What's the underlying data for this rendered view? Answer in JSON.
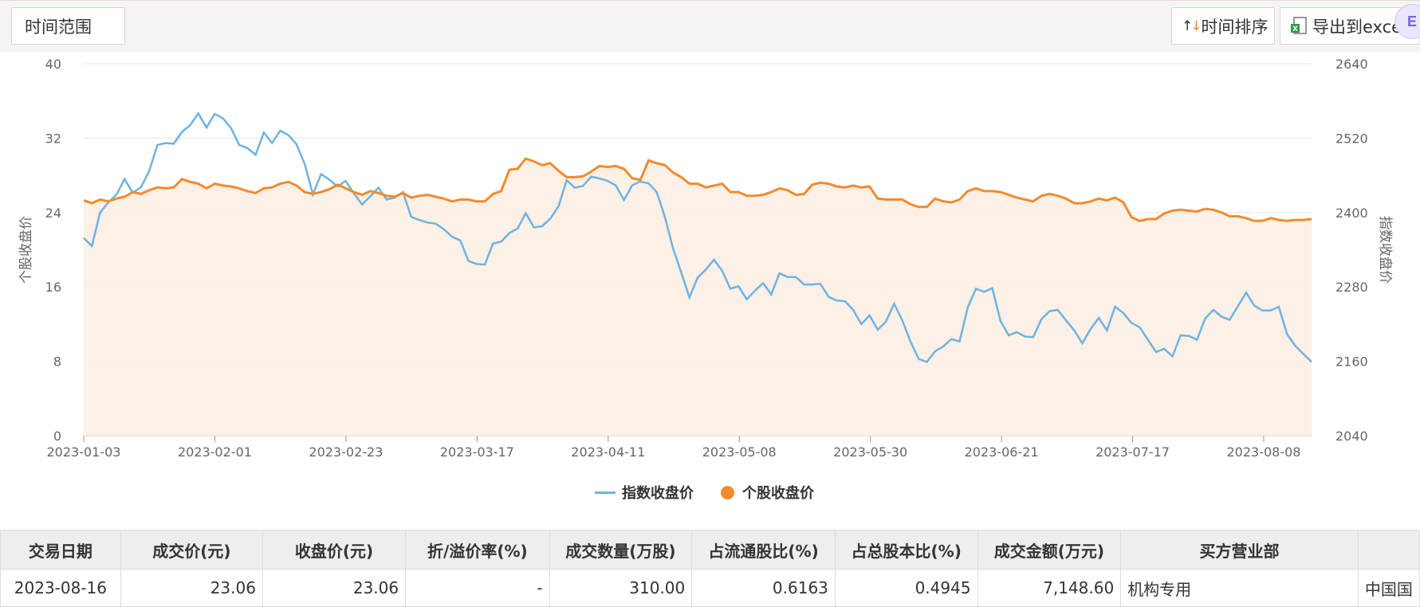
{
  "toolbar": {
    "time_range_label": "时间范围",
    "sort_label": "时间排序",
    "export_label": "导出到excel"
  },
  "colors": {
    "index_line": "#6fb3e0",
    "stock_line": "#f28b2d",
    "area_fill": "#fdeee4",
    "grid": "#e6e6e6"
  },
  "chart_data": {
    "type": "line",
    "ylabel_left": "个股收盘价",
    "ylabel_right": "指数收盘价",
    "y_left_ticks": [
      "0",
      "8",
      "16",
      "24",
      "32",
      "40"
    ],
    "y_right_ticks": [
      "2040",
      "2160",
      "2280",
      "2400",
      "2520",
      "2640"
    ],
    "ylim_left": [
      0,
      40
    ],
    "ylim_right": [
      2040,
      2640
    ],
    "x_ticks": [
      "2023-01-03",
      "2023-02-01",
      "2023-02-23",
      "2023-03-17",
      "2023-04-11",
      "2023-05-08",
      "2023-05-30",
      "2023-06-21",
      "2023-07-17",
      "2023-08-08"
    ],
    "legend_position": "bottom",
    "grid": true,
    "series": [
      {
        "name": "指数收盘价",
        "axis": "right",
        "values": [
          2359,
          2346,
          2400,
          2416,
          2429,
          2454,
          2432,
          2441,
          2467,
          2509,
          2512,
          2511,
          2530,
          2541,
          2560,
          2537,
          2559,
          2552,
          2536,
          2509,
          2504,
          2493,
          2529,
          2512,
          2532,
          2525,
          2510,
          2478,
          2429,
          2462,
          2453,
          2442,
          2451,
          2431,
          2413,
          2426,
          2440,
          2421,
          2424,
          2433,
          2393,
          2388,
          2384,
          2382,
          2373,
          2361,
          2355,
          2322,
          2317,
          2316,
          2350,
          2353,
          2367,
          2374,
          2399,
          2376,
          2378,
          2390,
          2410,
          2452,
          2440,
          2443,
          2458,
          2455,
          2451,
          2444,
          2420,
          2444,
          2450,
          2447,
          2433,
          2393,
          2342,
          2303,
          2263,
          2295,
          2308,
          2324,
          2306,
          2277,
          2281,
          2260,
          2274,
          2286,
          2268,
          2302,
          2296,
          2296,
          2284,
          2284,
          2285,
          2264,
          2258,
          2257,
          2243,
          2220,
          2234,
          2211,
          2224,
          2253,
          2226,
          2192,
          2164,
          2159,
          2176,
          2184,
          2196,
          2192,
          2247,
          2277,
          2272,
          2278,
          2225,
          2202,
          2207,
          2200,
          2199,
          2228,
          2241,
          2243,
          2226,
          2210,
          2189,
          2212,
          2230,
          2210,
          2248,
          2238,
          2222,
          2215,
          2195,
          2175,
          2180,
          2168,
          2202,
          2201,
          2195,
          2229,
          2243,
          2232,
          2227,
          2249,
          2271,
          2250,
          2242,
          2242,
          2248,
          2204,
          2185,
          2172,
          2159
        ]
      },
      {
        "name": "个股收盘价",
        "axis": "left",
        "values": [
          25.3,
          25.0,
          25.4,
          25.2,
          25.5,
          25.7,
          26.2,
          26.0,
          26.4,
          26.7,
          26.6,
          26.7,
          27.6,
          27.3,
          27.1,
          26.6,
          27.1,
          26.9,
          26.8,
          26.6,
          26.3,
          26.1,
          26.6,
          26.7,
          27.1,
          27.3,
          26.9,
          26.2,
          26.0,
          26.2,
          26.5,
          27.0,
          26.6,
          26.2,
          25.9,
          26.3,
          26.1,
          25.8,
          25.7,
          26.1,
          25.6,
          25.8,
          25.9,
          25.7,
          25.5,
          25.2,
          25.4,
          25.4,
          25.2,
          25.2,
          26.0,
          26.3,
          28.6,
          28.7,
          29.8,
          29.5,
          29.1,
          29.3,
          28.5,
          27.8,
          27.8,
          27.9,
          28.4,
          29.0,
          28.9,
          29.0,
          28.7,
          27.7,
          27.5,
          29.6,
          29.3,
          29.1,
          28.3,
          27.8,
          27.1,
          27.1,
          26.7,
          26.9,
          27.1,
          26.2,
          26.2,
          25.8,
          25.8,
          25.9,
          26.2,
          26.6,
          26.4,
          25.9,
          26.0,
          27.0,
          27.2,
          27.1,
          26.8,
          26.7,
          26.9,
          26.7,
          26.8,
          25.5,
          25.4,
          25.4,
          25.4,
          24.9,
          24.6,
          24.6,
          25.5,
          25.2,
          25.1,
          25.4,
          26.3,
          26.6,
          26.3,
          26.3,
          26.2,
          25.9,
          25.6,
          25.4,
          25.2,
          25.8,
          26.0,
          25.8,
          25.5,
          25.0,
          25.0,
          25.2,
          25.5,
          25.3,
          25.6,
          25.1,
          23.5,
          23.1,
          23.3,
          23.3,
          23.9,
          24.2,
          24.3,
          24.2,
          24.1,
          24.4,
          24.3,
          24.0,
          23.6,
          23.6,
          23.4,
          23.1,
          23.1,
          23.4,
          23.2,
          23.1,
          23.2,
          23.2,
          23.3
        ]
      }
    ]
  },
  "table": {
    "columns": [
      "交易日期",
      "成交价(元)",
      "收盘价(元)",
      "折/溢价率(%)",
      "成交数量(万股)",
      "占流通股比(%)",
      "占总股本比(%)",
      "成交金额(万元)",
      "买方营业部",
      ""
    ],
    "rows": [
      [
        "2023-08-16",
        "23.06",
        "23.06",
        "-",
        "310.00",
        "0.6163",
        "0.4945",
        "7,148.60",
        "机构专用",
        "中国国"
      ]
    ]
  }
}
